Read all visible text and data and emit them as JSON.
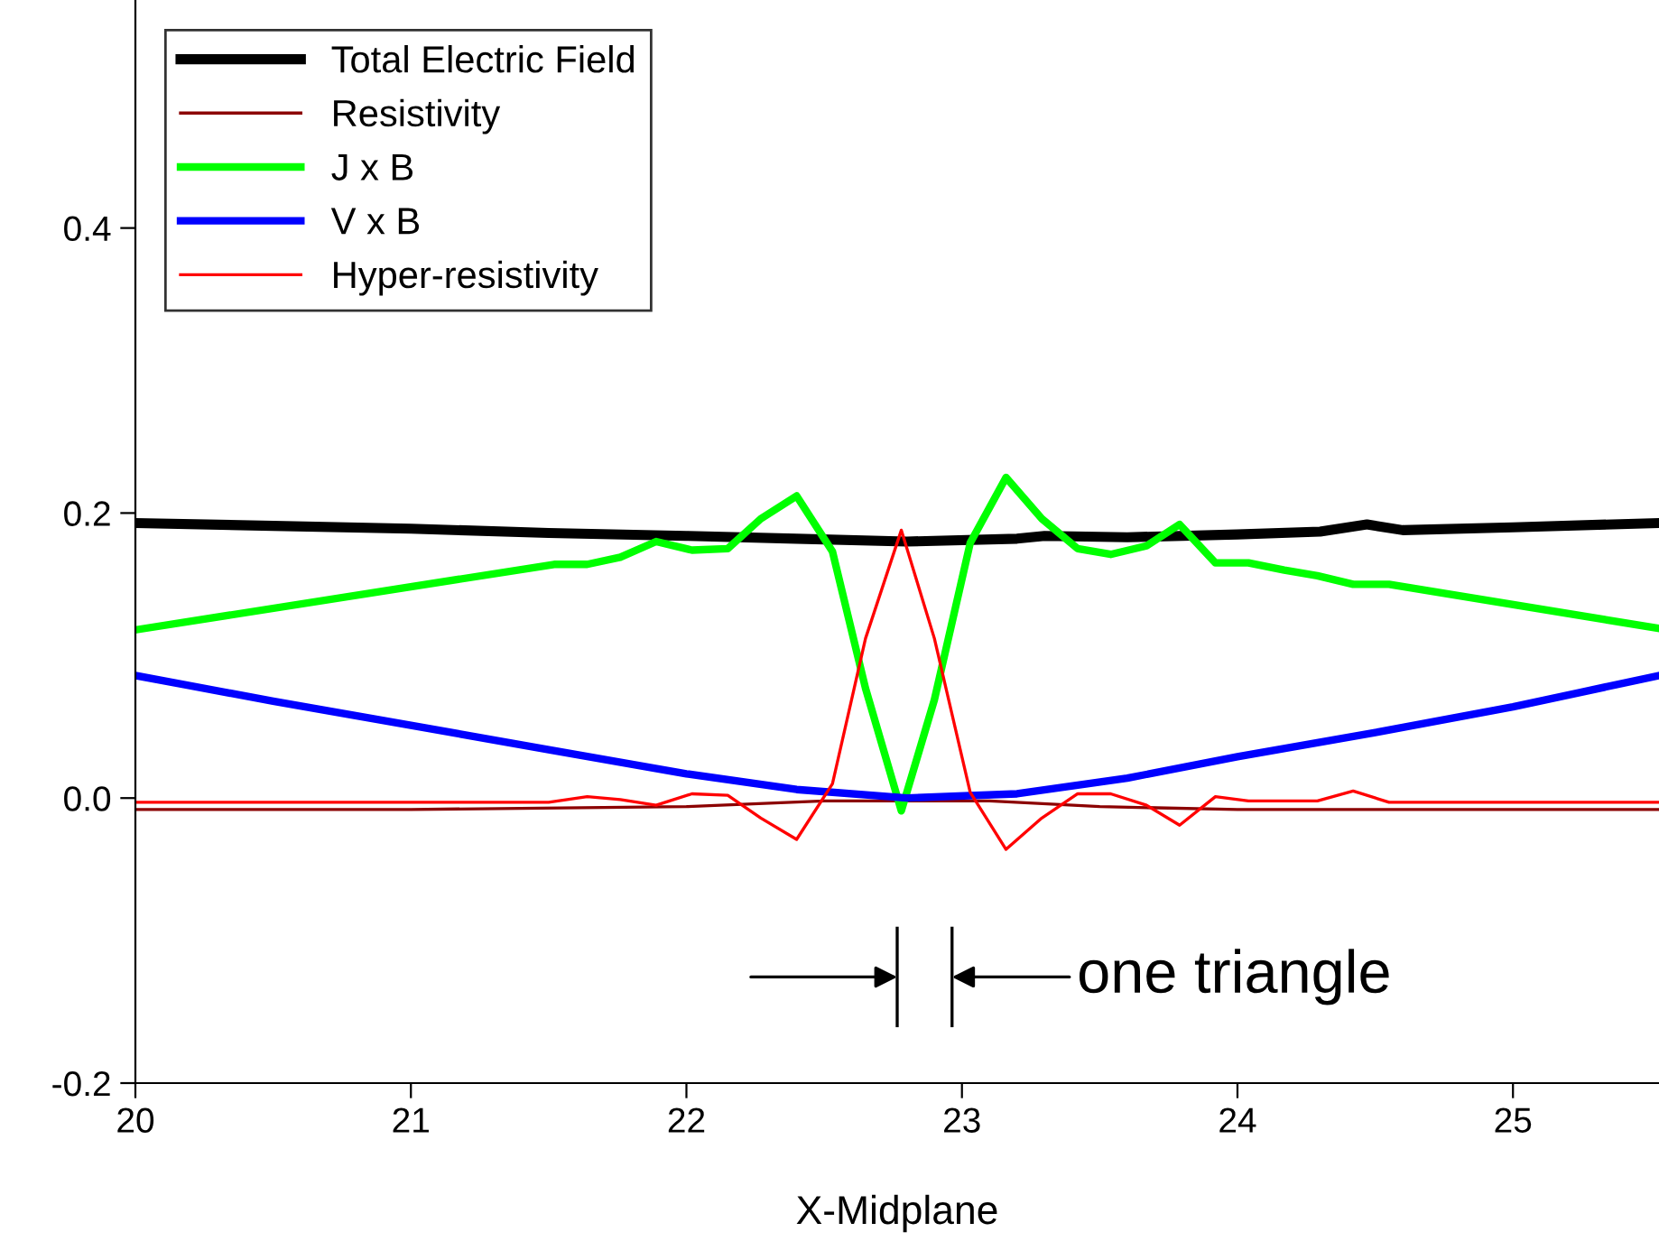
{
  "chart_data": {
    "type": "line",
    "xlabel": "X-Midplane",
    "xlim": [
      20,
      25.53
    ],
    "ylim": [
      -0.2,
      0.56
    ],
    "xticks": [
      20,
      21,
      22,
      23,
      24,
      25
    ],
    "yticks": [
      {
        "value": -0.2,
        "label": "-0.2"
      },
      {
        "value": 0,
        "label": "0.0"
      },
      {
        "value": 0.2,
        "label": "0.2"
      },
      {
        "value": 0.4,
        "label": "0.4"
      }
    ],
    "grid": false,
    "legend": "top left",
    "marker": "none",
    "line_style": "solid",
    "annotations": [
      "one triangle"
    ],
    "series": [
      {
        "name": "Total Electric Field",
        "color": "#000000",
        "x": [
          20,
          20.5,
          21,
          21.5,
          22,
          22.4,
          22.8,
          23.2,
          23.3,
          23.6,
          24,
          24.3,
          24.47,
          24.6,
          25,
          25.53
        ],
        "values": [
          0.193,
          0.191,
          0.189,
          0.186,
          0.184,
          0.182,
          0.18,
          0.182,
          0.184,
          0.183,
          0.185,
          0.187,
          0.192,
          0.188,
          0.19,
          0.193
        ]
      },
      {
        "name": "Resistivity",
        "color": "#8b0000",
        "x": [
          20,
          21,
          22,
          22.5,
          23.1,
          23.5,
          24,
          25.53
        ],
        "values": [
          -0.008,
          -0.008,
          -0.006,
          -0.002,
          -0.002,
          -0.006,
          -0.008,
          -0.008
        ]
      },
      {
        "name": "J x B",
        "color": "#00ff00",
        "x": [
          20,
          21.52,
          21.64,
          21.76,
          21.89,
          22.02,
          22.15,
          22.27,
          22.4,
          22.53,
          22.65,
          22.78,
          22.9,
          23.03,
          23.16,
          23.29,
          23.42,
          23.54,
          23.67,
          23.79,
          23.92,
          24.04,
          24.17,
          24.29,
          24.42,
          24.55,
          25.53
        ],
        "values": [
          0.118,
          0.164,
          0.164,
          0.169,
          0.18,
          0.174,
          0.175,
          0.196,
          0.212,
          0.173,
          0.077,
          -0.009,
          0.069,
          0.179,
          0.225,
          0.196,
          0.175,
          0.171,
          0.177,
          0.192,
          0.165,
          0.165,
          0.16,
          0.156,
          0.15,
          0.15,
          0.119
        ]
      },
      {
        "name": "V x B",
        "color": "#0000ff",
        "x": [
          20,
          20.5,
          21,
          21.5,
          22,
          22.4,
          22.8,
          23.2,
          23.6,
          24,
          24.5,
          25,
          25.53
        ],
        "values": [
          0.086,
          0.068,
          0.051,
          0.034,
          0.017,
          0.006,
          0.0,
          0.003,
          0.014,
          0.029,
          0.046,
          0.064,
          0.086
        ]
      },
      {
        "name": "Hyper-resistivity",
        "color": "#ff0000",
        "x": [
          20,
          21.5,
          21.64,
          21.76,
          21.89,
          22.02,
          22.15,
          22.27,
          22.4,
          22.53,
          22.65,
          22.78,
          22.9,
          23.03,
          23.16,
          23.29,
          23.42,
          23.54,
          23.67,
          23.79,
          23.92,
          24.04,
          24.29,
          24.42,
          24.55,
          25.53
        ],
        "values": [
          -0.003,
          -0.003,
          0.001,
          -0.001,
          -0.005,
          0.003,
          0.002,
          -0.014,
          -0.029,
          0.01,
          0.112,
          0.188,
          0.112,
          0.004,
          -0.036,
          -0.014,
          0.003,
          0.003,
          -0.005,
          -0.019,
          0.001,
          -0.002,
          -0.002,
          0.005,
          -0.003,
          -0.003
        ]
      }
    ]
  }
}
